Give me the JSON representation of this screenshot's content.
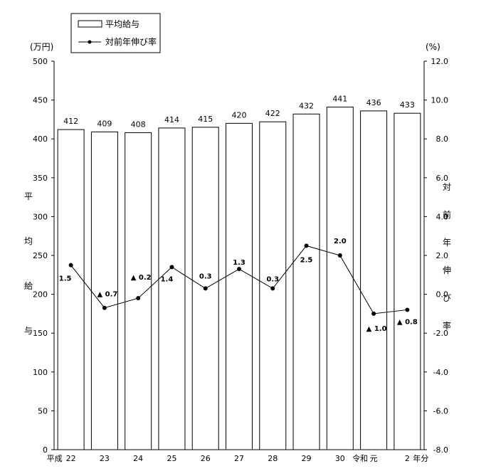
{
  "chart_data": {
    "type": "bar",
    "categories": [
      "22",
      "23",
      "24",
      "25",
      "26",
      "27",
      "28",
      "29",
      "30",
      "元",
      "2"
    ],
    "era_labels": {
      "start": "平成",
      "reiwa": "令和",
      "unit": "年分"
    },
    "left_unit": "(万円)",
    "right_unit": "(%)",
    "left_axis_label": [
      "平",
      "均",
      "給",
      "与"
    ],
    "right_axis_label": [
      "対",
      "前",
      "年",
      "伸",
      "び",
      "率"
    ],
    "left_ylim": [
      0,
      500
    ],
    "left_ticks": [
      "0",
      "50",
      "100",
      "150",
      "200",
      "250",
      "300",
      "350",
      "400",
      "450",
      "500"
    ],
    "right_ylim": [
      -8.0,
      12.0
    ],
    "right_ticks": [
      "-8.0",
      "-6.0",
      "-4.0",
      "-2.0",
      "0.0",
      "2.0",
      "4.0",
      "6.0",
      "8.0",
      "10.0",
      "12.0"
    ],
    "series": [
      {
        "name": "平均給与",
        "type": "bar",
        "axis": "left",
        "values": [
          412,
          409,
          408,
          414,
          415,
          420,
          422,
          432,
          441,
          436,
          433
        ],
        "labels": [
          "412",
          "409",
          "408",
          "414",
          "415",
          "420",
          "422",
          "432",
          "441",
          "436",
          "433"
        ]
      },
      {
        "name": "対前年伸び率",
        "type": "line",
        "axis": "right",
        "values": [
          1.5,
          -0.7,
          -0.2,
          1.4,
          0.3,
          1.3,
          0.3,
          2.5,
          2.0,
          -1.0,
          -0.8
        ],
        "labels": [
          "1.5",
          "▲ 0.7",
          "▲ 0.2",
          "1.4",
          "0.3",
          "1.3",
          "0.3",
          "2.5",
          "2.0",
          "▲ 1.0",
          "▲ 0.8"
        ]
      }
    ],
    "grid": false,
    "legend": "top-left"
  }
}
